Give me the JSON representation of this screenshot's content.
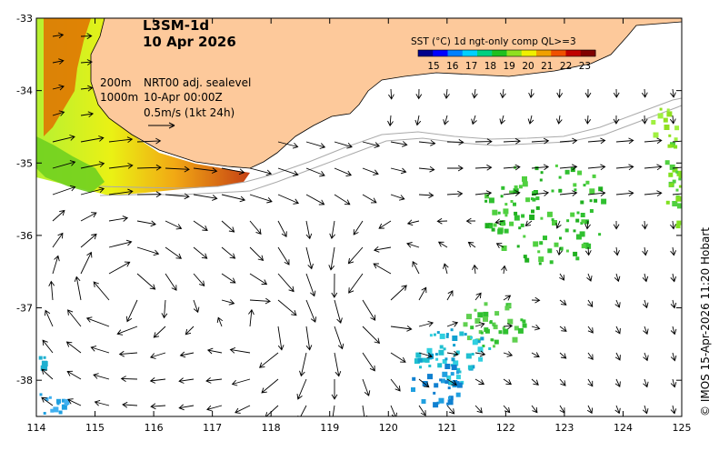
{
  "map": {
    "title_line1": "L3SM-1d",
    "title_line2": "10 Apr 2026",
    "info_depth_200": "200m",
    "info_depth_1000": "1000m",
    "info_product": "NRT00 adj. sealevel",
    "info_time": "10-Apr 00:00Z",
    "info_scale": "0.5m/s (1kt 24h)",
    "credit": "© IMOS 15-Apr-2026 11:20 Hobart",
    "lon_range": [
      114,
      125
    ],
    "lat_range": [
      -38.5,
      -33
    ]
  },
  "legend": {
    "title": "SST (°C) 1d ngt-only comp QL>=3",
    "ticks": [
      "15",
      "16",
      "17",
      "18",
      "19",
      "20",
      "21",
      "22",
      "23"
    ],
    "colors": [
      "#00008b",
      "#0000ff",
      "#0080ff",
      "#00d0ff",
      "#00d080",
      "#20c020",
      "#90e020",
      "#f0f000",
      "#f0a000",
      "#f05000",
      "#c00000",
      "#800000"
    ]
  },
  "axes": {
    "x_ticks": [
      "114",
      "115",
      "116",
      "117",
      "118",
      "119",
      "120",
      "121",
      "122",
      "123",
      "124",
      "125"
    ],
    "y_ticks": [
      "-33",
      "-34",
      "-35",
      "-36",
      "-37",
      "-38"
    ],
    "x_values": [
      114,
      115,
      116,
      117,
      118,
      119,
      120,
      121,
      122,
      123,
      124,
      125
    ],
    "y_values": [
      -33,
      -34,
      -35,
      -36,
      -37,
      -38
    ]
  },
  "colors": {
    "land": "#fdc99b",
    "sea": "#ffffff",
    "isobath": "#aaaaaa",
    "arrows": "#000000"
  }
}
